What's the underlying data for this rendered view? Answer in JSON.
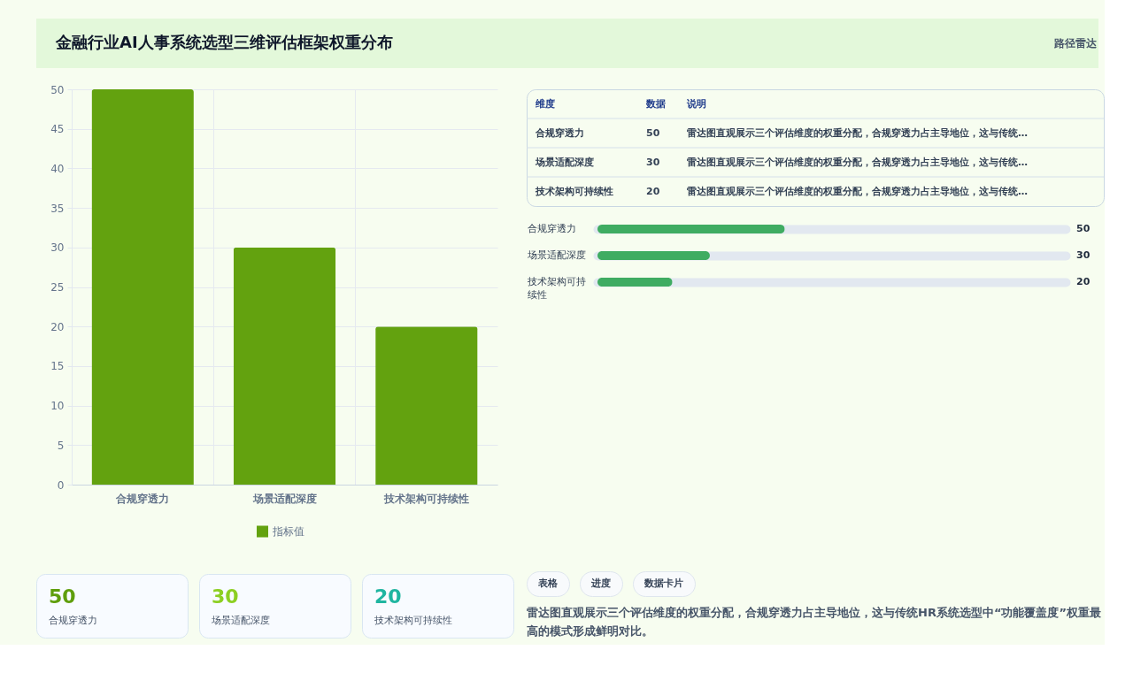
{
  "chart_data": [
    {
      "type": "other",
      "title": "金融行业AI人事系统选型三维评估框架权重分布",
      "subtitle": "路径雷达"
    },
    {
      "type": "bar",
      "categories": [
        "合规穿透力",
        "场景适配深度",
        "技术架构可持续性"
      ],
      "series": [
        {
          "name": "指标值",
          "color": "#63a20f",
          "values": [
            50,
            30,
            20
          ]
        }
      ],
      "ylim": [
        0,
        50
      ],
      "yticks": [
        0,
        5,
        10,
        15,
        20,
        25,
        30,
        35,
        40,
        45,
        50
      ],
      "grid": true,
      "legend": "bottom"
    },
    {
      "type": "other",
      "categories": [
        "合规穿透力",
        "场景适配深度",
        "技术架构可持续性"
      ],
      "values": [
        50,
        30,
        20
      ],
      "data_labels": true,
      "annotations": [
        "维度",
        "数据",
        "说明",
        "雷达图直观展示三个评估维度的权重分配，合规穿透力占主导地位，这与传统…",
        "雷达图直观展示三个评估维度的权重分配，合规穿透力占主导地位，这与传统…",
        "雷达图直观展示三个评估维度的权重分配，合规穿透力占主导地位，这与传统…"
      ]
    },
    {
      "type": "bar",
      "orientation": "horizontal",
      "categories": [
        "合规穿透力",
        "场景适配深度",
        "技术架构可持续性"
      ],
      "series": [
        {
          "color": "#3fac62",
          "values": [
            50,
            30,
            20
          ]
        }
      ],
      "xlim": [
        0,
        125
      ],
      "data_labels": true,
      "tick_labels": "y",
      "grid": "y"
    },
    {
      "type": "other",
      "categories": [
        "合规穿透力",
        "场景适配深度",
        "技术架构可持续性"
      ],
      "values": [
        50,
        30,
        20
      ],
      "data_labels": true,
      "colors": [
        "#5f9e0c",
        "#8ccf22",
        "#1fb5a0"
      ]
    },
    {
      "type": "other",
      "annotations": [
        "表格",
        "进度",
        "数据卡片",
        "雷达图直观展示三个评估维度的权重分配，合规穿透力占主导地位，这与传统HR系统选型中“功能覆盖度”权重最高的模式形成鲜明对比。"
      ]
    }
  ]
}
